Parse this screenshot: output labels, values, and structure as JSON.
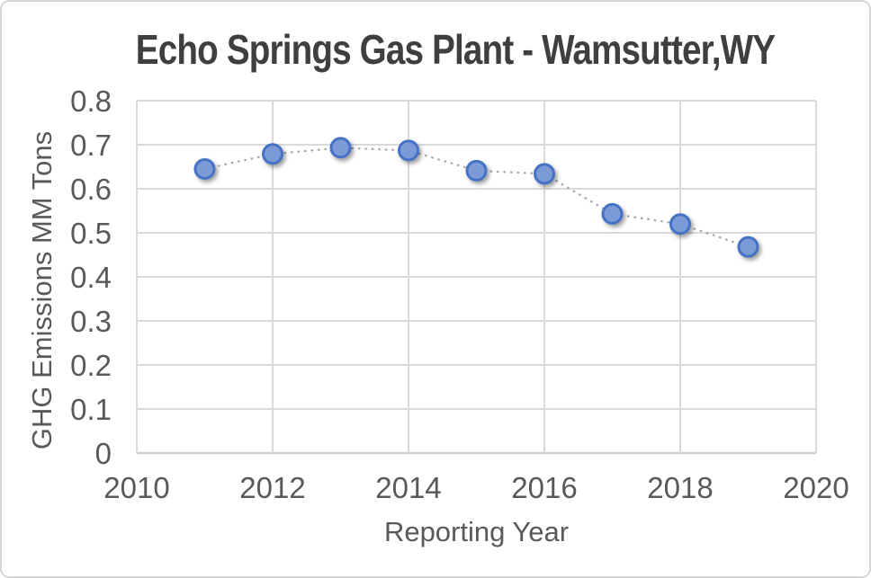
{
  "window": {
    "background": "#ffffff",
    "border_color": "#d6d6d6"
  },
  "chart_data": {
    "type": "scatter",
    "title": "Echo Springs Gas Plant - Wamsutter,WY",
    "xlabel": "Reporting Year",
    "ylabel": "GHG Emissions MM Tons",
    "points": [
      {
        "year": 2011,
        "value": 0.645
      },
      {
        "year": 2012,
        "value": 0.679
      },
      {
        "year": 2013,
        "value": 0.693
      },
      {
        "year": 2014,
        "value": 0.687
      },
      {
        "year": 2015,
        "value": 0.641
      },
      {
        "year": 2016,
        "value": 0.634
      },
      {
        "year": 2017,
        "value": 0.543
      },
      {
        "year": 2018,
        "value": 0.52
      },
      {
        "year": 2019,
        "value": 0.468
      }
    ],
    "xlim": [
      2010,
      2020
    ],
    "ylim": [
      0,
      0.8
    ],
    "x_ticks": [
      2010,
      2012,
      2014,
      2016,
      2018,
      2020
    ],
    "x_tick_labels": [
      "2010",
      "2012",
      "2014",
      "2016",
      "2018",
      "2020"
    ],
    "y_ticks": [
      0,
      0.1,
      0.2,
      0.3,
      0.4,
      0.5,
      0.6,
      0.7,
      0.8
    ],
    "y_tick_labels": [
      "0",
      "0.1",
      "0.2",
      "0.3",
      "0.4",
      "0.5",
      "0.6",
      "0.7",
      "0.8"
    ],
    "grid": true,
    "legend": "none",
    "marker_style": {
      "shape": "circle",
      "fill": "#7c9ad6",
      "stroke": "#4472c4"
    },
    "line_style": {
      "color": "#a6a6a6",
      "dash": "dotted"
    },
    "grid_color": "#d9d9d9",
    "axis_line_color": "#d0d0d0",
    "text_color": "#595959",
    "title_color": "#3f3f3f"
  }
}
